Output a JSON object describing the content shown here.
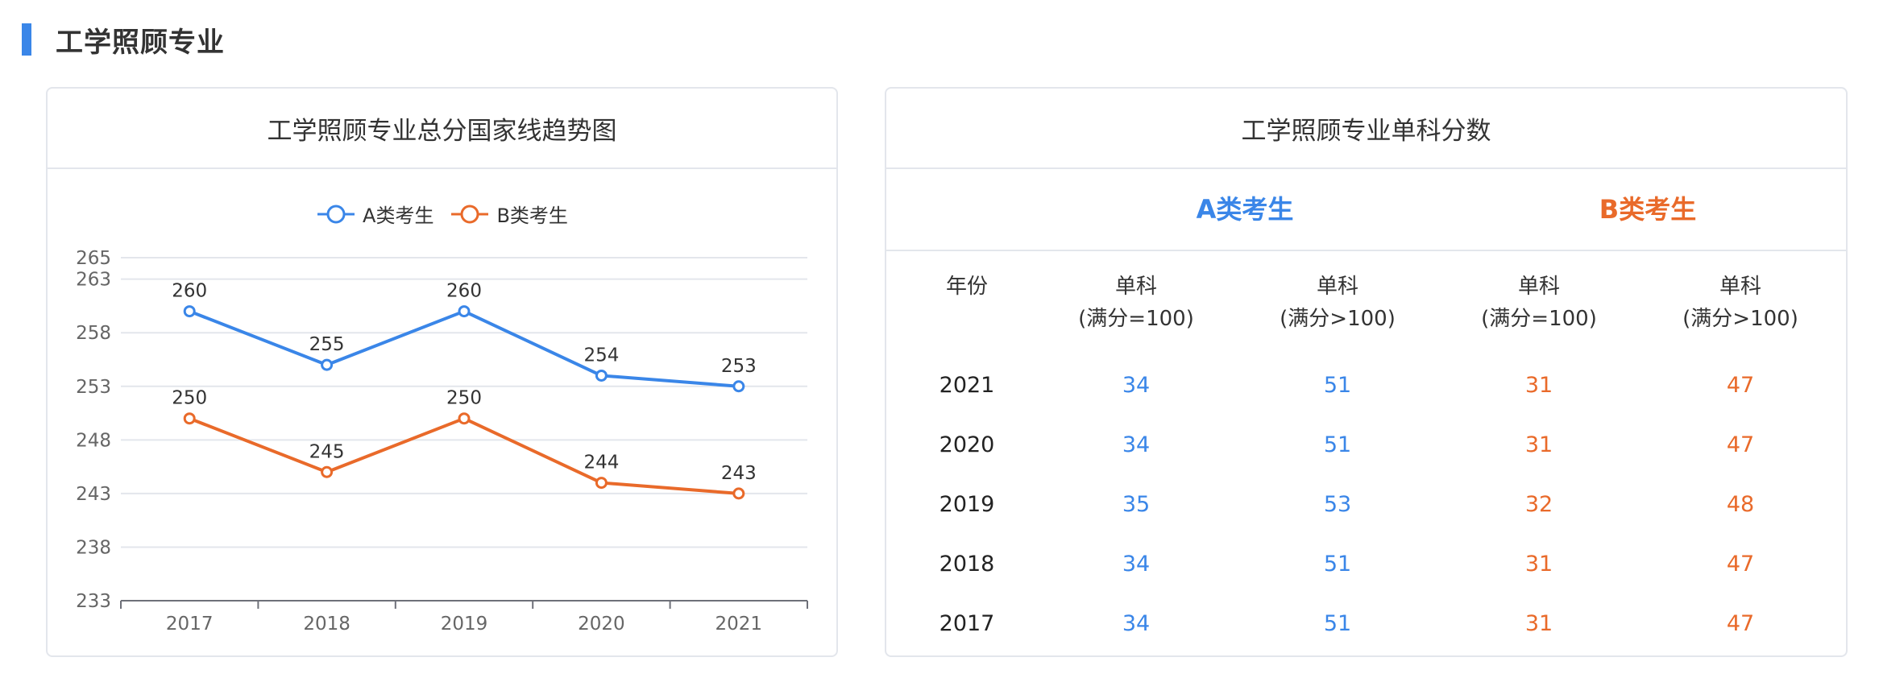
{
  "section": {
    "title": "工学照顾专业"
  },
  "colors": {
    "accent": "#3a86e8",
    "series_a": "#3a86e8",
    "series_b": "#e96a2a"
  },
  "left_card": {
    "title": "工学照顾专业总分国家线趋势图"
  },
  "legend": {
    "a": "A类考生",
    "b": "B类考生"
  },
  "chart_data": {
    "type": "line",
    "title": "工学照顾专业总分国家线趋势图",
    "x": [
      "2017",
      "2018",
      "2019",
      "2020",
      "2021"
    ],
    "series": [
      {
        "name": "A类考生",
        "values": [
          260,
          255,
          260,
          254,
          253
        ]
      },
      {
        "name": "B类考生",
        "values": [
          250,
          245,
          250,
          244,
          243
        ]
      }
    ],
    "y_ticks": [
      233,
      238,
      243,
      248,
      253,
      258,
      263,
      265
    ],
    "ylim": [
      233,
      265
    ],
    "grid": true,
    "legend_position": "top-center"
  },
  "right_card": {
    "title": "工学照顾专业单科分数",
    "group_a": "A类考生",
    "group_b": "B类考生",
    "headers": {
      "year": "年份",
      "col1_line1": "单科",
      "col1_line2": "(满分=100)",
      "col2_line1": "单科",
      "col2_line2": "(满分>100)",
      "col3_line1": "单科",
      "col3_line2": "(满分=100)",
      "col4_line1": "单科",
      "col4_line2": "(满分>100)"
    },
    "rows": [
      {
        "year": "2021",
        "a1": "34",
        "a2": "51",
        "b1": "31",
        "b2": "47"
      },
      {
        "year": "2020",
        "a1": "34",
        "a2": "51",
        "b1": "31",
        "b2": "47"
      },
      {
        "year": "2019",
        "a1": "35",
        "a2": "53",
        "b1": "32",
        "b2": "48"
      },
      {
        "year": "2018",
        "a1": "34",
        "a2": "51",
        "b1": "31",
        "b2": "47"
      },
      {
        "year": "2017",
        "a1": "34",
        "a2": "51",
        "b1": "31",
        "b2": "47"
      }
    ]
  }
}
